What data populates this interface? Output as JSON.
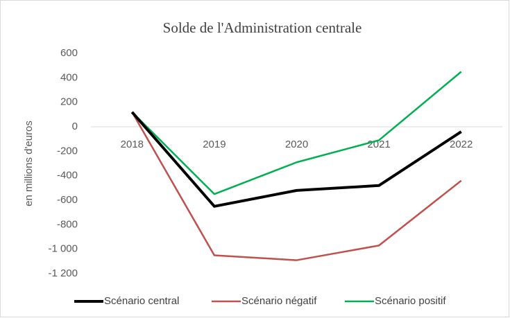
{
  "chart_data": {
    "type": "line",
    "title": "Solde de l'Administration centrale",
    "y_label": "en millions d'euros",
    "categories": [
      "2018",
      "2019",
      "2020",
      "2021",
      "2022"
    ],
    "series": [
      {
        "name": "Scénario central",
        "color": "#000000",
        "values": [
          120,
          -650,
          -520,
          -480,
          -40
        ]
      },
      {
        "name": "Scénario négatif",
        "color": "#c0504d",
        "values": [
          120,
          -1050,
          -1090,
          -970,
          -440
        ]
      },
      {
        "name": "Scénario positif",
        "color": "#00b050",
        "values": [
          120,
          -550,
          -290,
          -110,
          450
        ]
      }
    ],
    "ylim": [
      -1200,
      600
    ],
    "yticks": [
      600,
      400,
      200,
      0,
      -200,
      -400,
      -600,
      -800,
      {
        "value": -1000,
        "label": "-1 000"
      },
      {
        "value": -1200,
        "label": "-1 200"
      }
    ],
    "legend": "bottom"
  }
}
